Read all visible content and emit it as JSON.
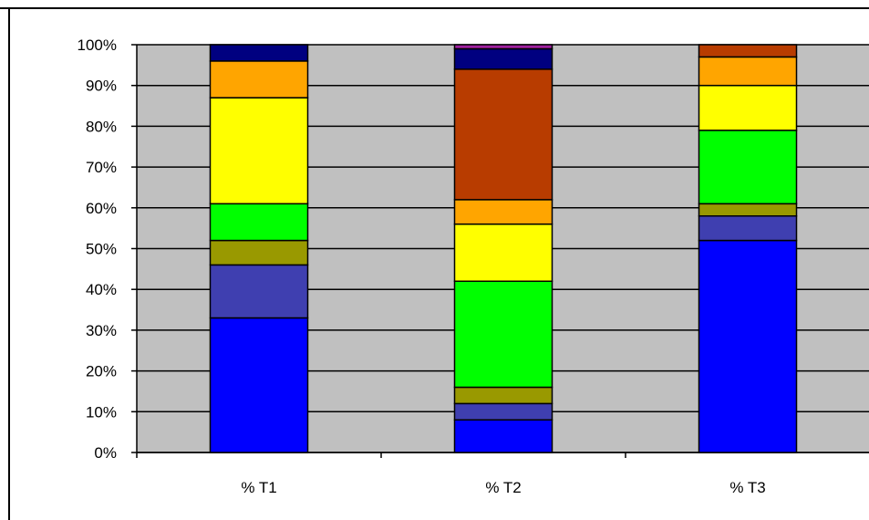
{
  "chart_data": {
    "type": "bar",
    "stacked": true,
    "percent_stacked": true,
    "categories": [
      "% T1",
      "% T2",
      "% T3"
    ],
    "ylim": [
      0,
      100
    ],
    "yticks": [
      "0%",
      "10%",
      "20%",
      "30%",
      "40%",
      "50%",
      "60%",
      "70%",
      "80%",
      "90%",
      "100%"
    ],
    "grid": true,
    "plot_background": "#c0c0c0",
    "series": [
      {
        "color": "#0000ff",
        "values": [
          33,
          8,
          52
        ]
      },
      {
        "color": "#3f3fb0",
        "values": [
          13,
          4,
          6
        ]
      },
      {
        "color": "#999900",
        "values": [
          6,
          4,
          3
        ]
      },
      {
        "color": "#00ff00",
        "values": [
          9,
          26,
          18
        ]
      },
      {
        "color": "#ffff00",
        "values": [
          26,
          14,
          11
        ]
      },
      {
        "color": "#ffa500",
        "values": [
          9,
          6,
          7
        ]
      },
      {
        "color": "#b83c00",
        "values": [
          0,
          32,
          3
        ]
      },
      {
        "color": "#000080",
        "values": [
          4,
          5,
          0
        ]
      },
      {
        "color": "#a020a0",
        "values": [
          0,
          1,
          0
        ]
      }
    ]
  }
}
